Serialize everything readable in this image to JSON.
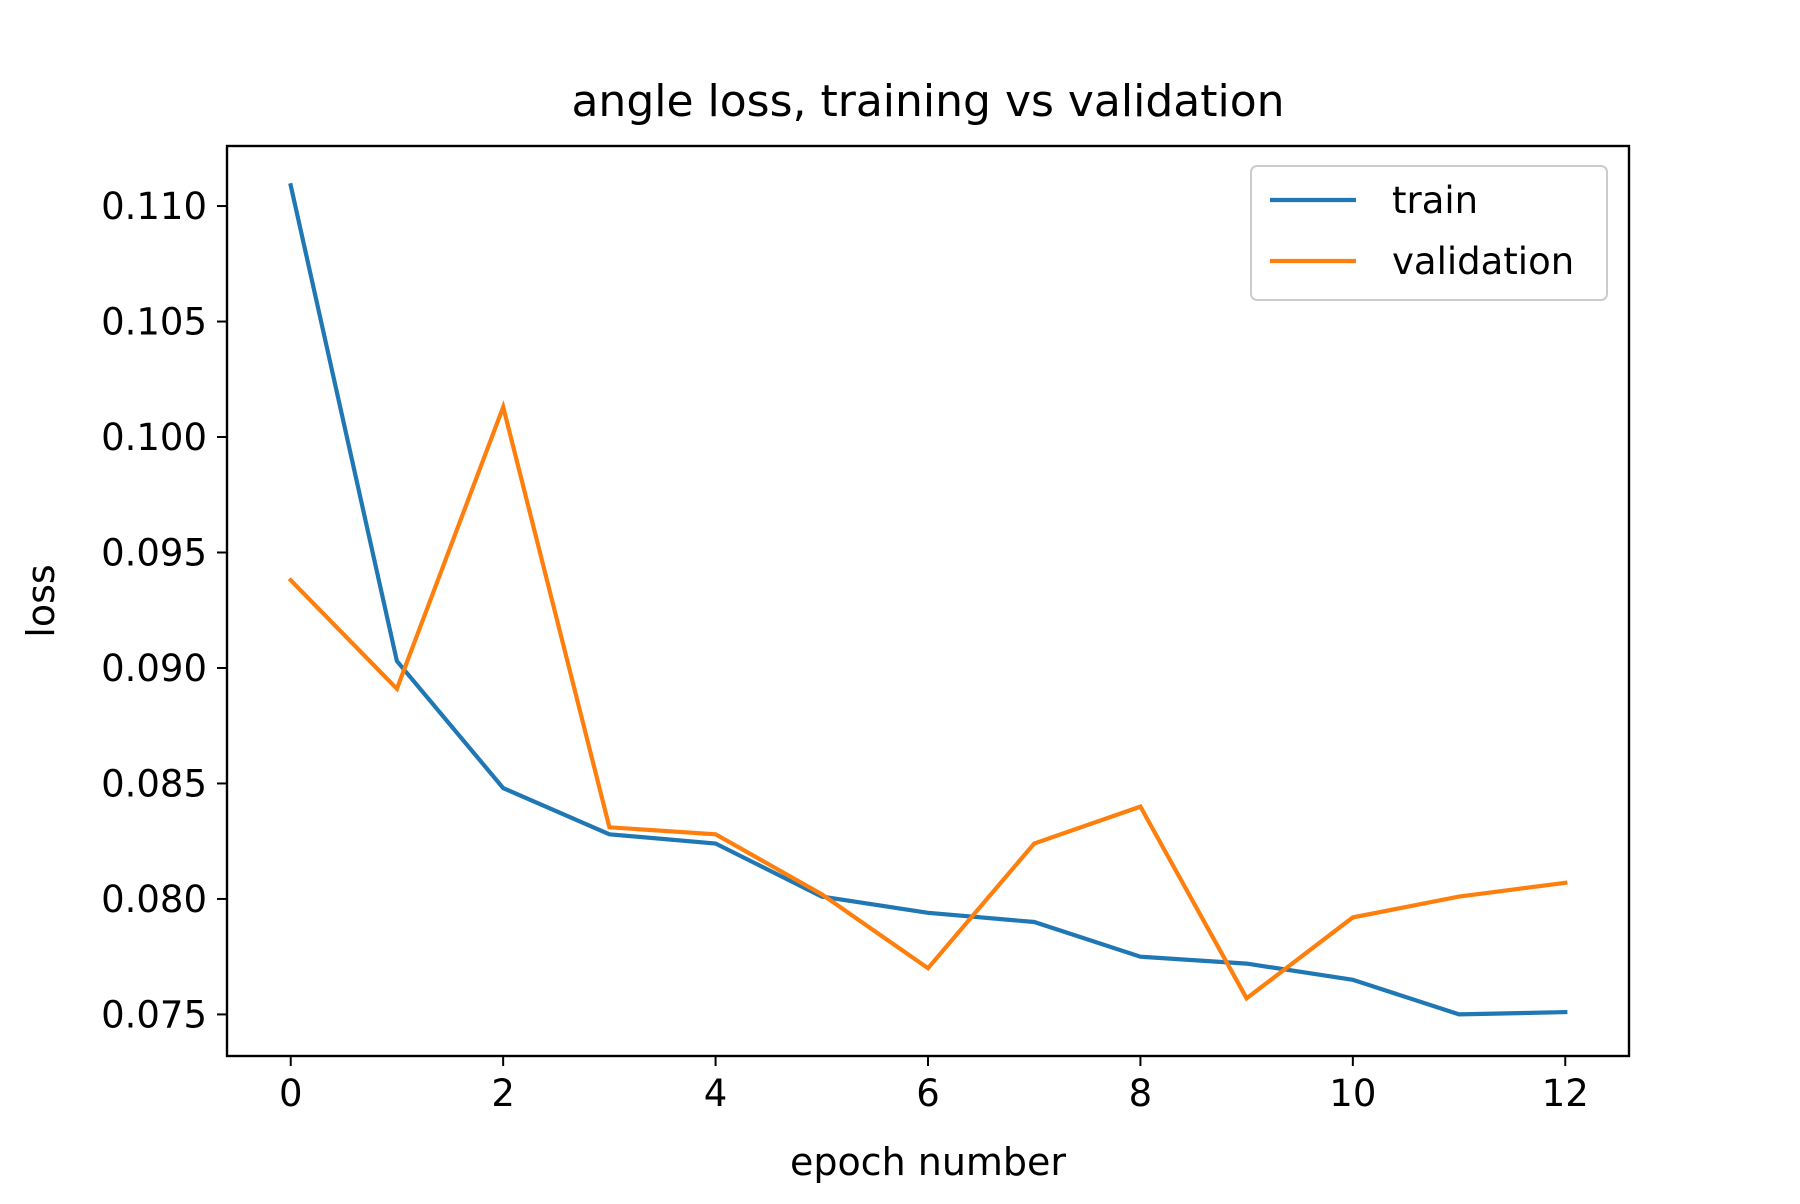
{
  "chart_data": {
    "type": "line",
    "title": "angle loss, training vs validation",
    "xlabel": "epoch number",
    "ylabel": "loss",
    "x": [
      0,
      1,
      2,
      3,
      4,
      5,
      6,
      7,
      8,
      9,
      10,
      11,
      12
    ],
    "xlim": [
      -0.6,
      12.6
    ],
    "ylim": [
      0.0732,
      0.1126
    ],
    "xticks": [
      0,
      2,
      4,
      6,
      8,
      10,
      12
    ],
    "xtick_labels": [
      "0",
      "2",
      "4",
      "6",
      "8",
      "10",
      "12"
    ],
    "yticks": [
      0.075,
      0.08,
      0.085,
      0.09,
      0.095,
      0.1,
      0.105,
      0.11
    ],
    "ytick_labels": [
      "0.075",
      "0.080",
      "0.085",
      "0.090",
      "0.095",
      "0.100",
      "0.105",
      "0.110"
    ],
    "grid": false,
    "legend_position": "top-right",
    "series": [
      {
        "name": "train",
        "color": "#1f77b4",
        "values": [
          0.1109,
          0.0903,
          0.0848,
          0.0828,
          0.0824,
          0.0801,
          0.0794,
          0.079,
          0.0775,
          0.0772,
          0.0765,
          0.075,
          0.0751
        ]
      },
      {
        "name": "validation",
        "color": "#ff7f0e",
        "values": [
          0.0938,
          0.0891,
          0.1013,
          0.0831,
          0.0828,
          0.0802,
          0.077,
          0.0824,
          0.084,
          0.0757,
          0.0792,
          0.0801,
          0.0807
        ]
      }
    ]
  }
}
